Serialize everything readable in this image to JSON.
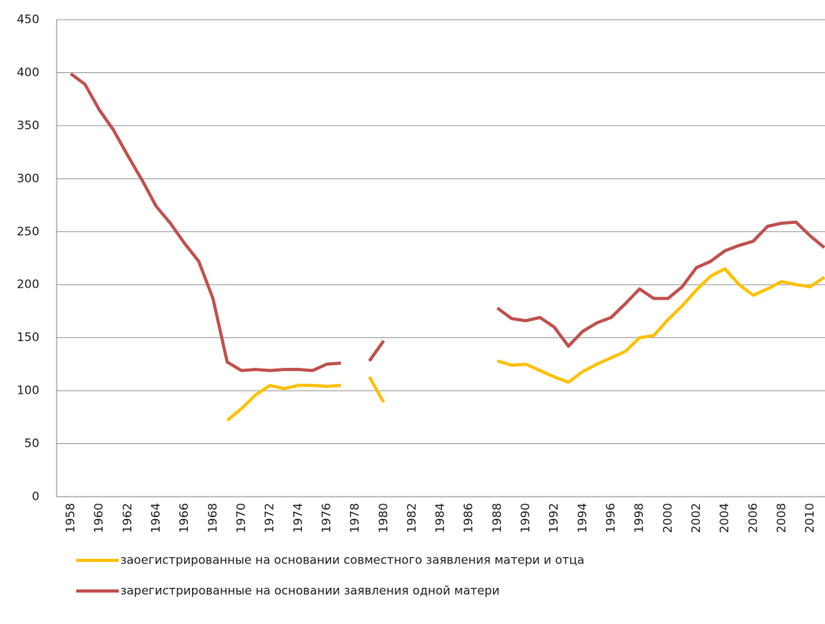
{
  "chart_data": {
    "type": "line",
    "categories": [
      "1958",
      null,
      "1960",
      null,
      "1962",
      null,
      "1964",
      null,
      "1966",
      null,
      "1968",
      null,
      "1970",
      null,
      "1972",
      null,
      "1974",
      null,
      "1976",
      null,
      "1978",
      null,
      "1980",
      null,
      "1982",
      null,
      "1984",
      null,
      "1986",
      null,
      "1988",
      null,
      "1990",
      null,
      "1992",
      null,
      "1994",
      null,
      "1996",
      null,
      "1998",
      null,
      "2000",
      null,
      "2002",
      null,
      "2004",
      null,
      "2006",
      null,
      "2008",
      null,
      "2010",
      null
    ],
    "series": [
      {
        "name": "заоегистрированные на основании совместного заявления матери и отца",
        "color": "#ffc000",
        "values": [
          null,
          null,
          null,
          null,
          null,
          null,
          null,
          null,
          null,
          null,
          null,
          72,
          83,
          96,
          105,
          102,
          105,
          105,
          104,
          105,
          null,
          113,
          89,
          null,
          null,
          null,
          null,
          null,
          null,
          null,
          128,
          124,
          125,
          119,
          113,
          108,
          118,
          125,
          131,
          137,
          150,
          152,
          167,
          180,
          195,
          208,
          215,
          200,
          190,
          196,
          203,
          200,
          198,
          207
        ]
      },
      {
        "name": "зарегистрированные на основании заявления одной матери",
        "color": "#c0504d",
        "values": [
          399,
          389,
          365,
          346,
          322,
          299,
          274,
          258,
          239,
          222,
          187,
          127,
          119,
          120,
          119,
          120,
          120,
          119,
          125,
          126,
          null,
          128,
          147,
          null,
          null,
          null,
          null,
          null,
          null,
          null,
          178,
          168,
          166,
          169,
          160,
          142,
          156,
          164,
          169,
          182,
          196,
          187,
          187,
          198,
          216,
          222,
          232,
          237,
          241,
          255,
          258,
          259,
          246,
          235
        ]
      }
    ],
    "ylim": [
      0,
      450
    ],
    "yticks": [
      0,
      50,
      100,
      150,
      200,
      250,
      300,
      350,
      400,
      450
    ],
    "grid": true
  }
}
